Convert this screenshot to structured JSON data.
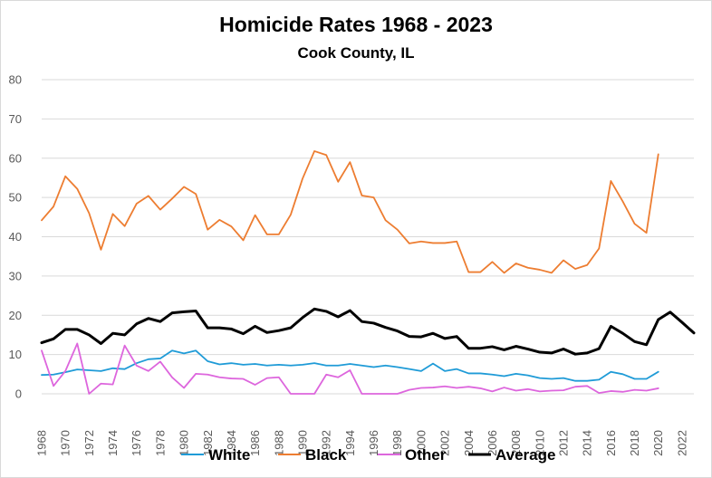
{
  "chart_data": {
    "type": "line",
    "title": "Homicide Rates 1968 - 2023",
    "subtitle": "Cook County, IL",
    "xlabel": "",
    "ylabel": "",
    "ylim": [
      0,
      80
    ],
    "yticks": [
      "0",
      "10",
      "20",
      "30",
      "40",
      "50",
      "60",
      "70",
      "80"
    ],
    "x": [
      1968,
      1969,
      1970,
      1971,
      1972,
      1973,
      1974,
      1975,
      1976,
      1977,
      1978,
      1979,
      1980,
      1981,
      1982,
      1983,
      1984,
      1985,
      1986,
      1987,
      1988,
      1989,
      1990,
      1991,
      1992,
      1993,
      1994,
      1995,
      1996,
      1997,
      1998,
      1999,
      2000,
      2001,
      2002,
      2003,
      2004,
      2005,
      2006,
      2007,
      2008,
      2009,
      2010,
      2011,
      2012,
      2013,
      2014,
      2015,
      2016,
      2017,
      2018,
      2019,
      2020,
      2021,
      2022,
      2023
    ],
    "xticks": [
      "1968",
      "1970",
      "1972",
      "1974",
      "1976",
      "1978",
      "1980",
      "1982",
      "1984",
      "1986",
      "1988",
      "1990",
      "1992",
      "1994",
      "1996",
      "1998",
      "2000",
      "2002",
      "2004",
      "2006",
      "2008",
      "2010",
      "2012",
      "2014",
      "2016",
      "2018",
      "2020",
      "2022"
    ],
    "grid": true,
    "legend_position": "bottom",
    "series": [
      {
        "name": "White",
        "color": "#1f9bd7",
        "values": [
          4.8,
          4.9,
          5.5,
          6.2,
          6.0,
          5.8,
          6.5,
          6.3,
          7.8,
          8.8,
          9.0,
          11.0,
          10.3,
          11.0,
          8.3,
          7.5,
          7.8,
          7.4,
          7.6,
          7.2,
          7.4,
          7.2,
          7.4,
          7.8,
          7.2,
          7.2,
          7.6,
          7.2,
          6.8,
          7.2,
          6.8,
          6.3,
          5.8,
          7.7,
          5.8,
          6.3,
          5.2,
          5.2,
          4.9,
          4.5,
          5.1,
          4.7,
          4.0,
          3.8,
          4.0,
          3.3,
          3.3,
          3.6,
          5.6,
          5.0,
          3.8,
          3.8,
          5.6,
          null,
          null,
          null
        ]
      },
      {
        "name": "Black",
        "color": "#ed7d31",
        "values": [
          44.2,
          47.7,
          55.4,
          52.2,
          46.0,
          36.7,
          45.8,
          42.7,
          48.4,
          50.4,
          46.9,
          49.7,
          52.7,
          50.9,
          41.8,
          44.3,
          42.6,
          39.1,
          45.5,
          40.6,
          40.6,
          45.6,
          54.8,
          61.8,
          60.8,
          54.0,
          59.0,
          50.5,
          50.0,
          44.2,
          41.8,
          38.3,
          38.8,
          38.4,
          38.4,
          38.8,
          31.0,
          31.0,
          33.6,
          30.8,
          33.2,
          32.1,
          31.6,
          30.8,
          34.0,
          31.8,
          32.8,
          37.0,
          54.2,
          49.0,
          43.3,
          41.0,
          61.0,
          null,
          null,
          null
        ]
      },
      {
        "name": "Other",
        "color": "#dd66dd",
        "values": [
          11.0,
          2.0,
          5.8,
          12.8,
          0.0,
          2.6,
          2.4,
          12.3,
          7.2,
          5.8,
          8.2,
          4.2,
          1.5,
          5.1,
          4.9,
          4.2,
          3.9,
          3.8,
          2.3,
          4.0,
          4.2,
          0.0,
          0.0,
          0.0,
          4.9,
          4.2,
          6.0,
          0.0,
          0.0,
          0.0,
          0.0,
          1.0,
          1.5,
          1.6,
          1.9,
          1.5,
          1.8,
          1.4,
          0.6,
          1.6,
          0.8,
          1.2,
          0.6,
          0.8,
          0.9,
          1.8,
          2.0,
          0.2,
          0.7,
          0.5,
          1.0,
          0.8,
          1.4,
          null,
          null,
          null
        ]
      },
      {
        "name": "Average",
        "color": "#000000",
        "values": [
          13.0,
          14.0,
          16.4,
          16.4,
          15.0,
          12.8,
          15.4,
          15.0,
          17.8,
          19.2,
          18.4,
          20.6,
          20.9,
          21.1,
          16.8,
          16.8,
          16.5,
          15.3,
          17.2,
          15.6,
          16.1,
          16.8,
          19.4,
          21.6,
          21.0,
          19.6,
          21.2,
          18.4,
          18.0,
          16.9,
          16.0,
          14.6,
          14.5,
          15.4,
          14.1,
          14.6,
          11.6,
          11.6,
          12.0,
          11.2,
          12.1,
          11.4,
          10.6,
          10.4,
          11.4,
          10.1,
          10.4,
          11.5,
          17.2,
          15.4,
          13.3,
          12.5,
          18.9,
          20.8,
          18.2,
          15.5
        ]
      }
    ]
  }
}
